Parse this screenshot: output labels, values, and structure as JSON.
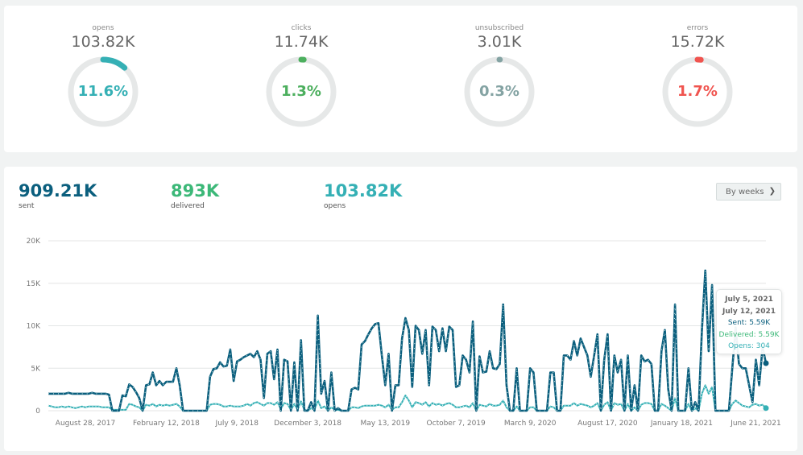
{
  "gauges": [
    {
      "label": "opens",
      "value": "103.82K",
      "percent_label": "11.6%",
      "percent": 11.6,
      "color": "#35b0b5"
    },
    {
      "label": "clicks",
      "value": "11.74K",
      "percent_label": "1.3%",
      "percent": 1.3,
      "color": "#4caf5e"
    },
    {
      "label": "unsubscribed",
      "value": "3.01K",
      "percent_label": "0.3%",
      "percent": 0.3,
      "color": "#84a3a3"
    },
    {
      "label": "errors",
      "value": "15.72K",
      "percent_label": "1.7%",
      "percent": 1.7,
      "color": "#f0544f"
    }
  ],
  "stats": [
    {
      "value": "909.21K",
      "label": "sent",
      "color": "#0b5f7e"
    },
    {
      "value": "893K",
      "label": "delivered",
      "color": "#3cb878"
    },
    {
      "value": "103.82K",
      "label": "opens",
      "color": "#35b0b5"
    }
  ],
  "period_select": {
    "value": "By weeks"
  },
  "tooltip": {
    "date_start": "July 5, 2021",
    "date_end": "July 12, 2021",
    "sent": "Sent: 5.59K",
    "delivered": "Delivered: 5.59K",
    "opens": "Opens: 304"
  },
  "chart_data": {
    "type": "line",
    "interval": "week",
    "ylim": [
      0,
      20000
    ],
    "y_ticks": [
      "0",
      "5K",
      "10K",
      "15K",
      "20K"
    ],
    "y_tick_values": [
      0,
      5000,
      10000,
      15000,
      20000
    ],
    "x_ticks": [
      "August 28, 2017",
      "February 12, 2018",
      "July 9, 2018",
      "December 3, 2018",
      "May 13, 2019",
      "October 7, 2019",
      "March 9, 2020",
      "August 17, 2020",
      "January 18, 2021",
      "June 21, 2021"
    ],
    "x_end": "July 12, 2021",
    "grid": true,
    "colors": {
      "sent": "#0b5f7e",
      "delivered": "#3cb878",
      "opens": "#35b0b5"
    },
    "series": [
      {
        "name": "Sent",
        "unit": "K",
        "values": [
          2,
          2,
          2,
          2,
          2,
          2,
          2.1,
          2,
          2,
          2,
          2,
          2,
          2,
          2.1,
          2,
          2,
          2,
          2,
          1.9,
          0,
          0,
          0,
          1.8,
          1.7,
          3.1,
          2.8,
          2.2,
          1.5,
          0,
          3.0,
          3.1,
          4.5,
          3.0,
          3.5,
          3.0,
          3.4,
          3.4,
          3.4,
          5.0,
          3.0,
          0,
          0,
          0,
          0,
          0,
          0,
          0,
          0,
          4.0,
          4.9,
          5.0,
          5.7,
          5.2,
          5.3,
          7.2,
          3.5,
          5.8,
          6.0,
          6.3,
          6.5,
          6.7,
          6.3,
          7.0,
          6.0,
          1.5,
          6.7,
          7.0,
          3.7,
          7.2,
          0,
          6.0,
          5.8,
          0,
          5.7,
          0,
          8.3,
          0,
          0,
          1.0,
          0,
          11.2,
          2.0,
          3.5,
          0,
          4.5,
          0,
          0.3,
          0,
          0,
          0,
          2.5,
          2.7,
          2.5,
          7.8,
          8.2,
          9.0,
          9.7,
          10.2,
          10.3,
          6.5,
          3.0,
          6.7,
          0,
          3.0,
          3.0,
          8.5,
          10.9,
          9.5,
          2.8,
          10.0,
          9.5,
          6.7,
          9.5,
          3.0,
          9.9,
          9.5,
          7.0,
          9.7,
          7.0,
          9.9,
          9.5,
          2.8,
          3.0,
          6.5,
          6.0,
          4.5,
          10.5,
          0,
          6.4,
          4.5,
          4.6,
          7.0,
          5.0,
          4.9,
          5.5,
          12.5,
          3.0,
          0,
          0,
          5.0,
          0,
          0,
          0,
          5.0,
          4.5,
          0,
          0,
          0,
          0,
          4.5,
          4.5,
          0,
          0,
          6.5,
          6.5,
          6.0,
          8.2,
          6.5,
          8.5,
          7.5,
          6.5,
          4.0,
          6.5,
          9.0,
          0,
          6.0,
          9.0,
          0,
          6.5,
          4.5,
          6.0,
          0,
          6.5,
          0,
          3.0,
          0,
          6.5,
          5.8,
          6.0,
          5.5,
          0,
          0,
          7.0,
          9.5,
          2.5,
          0,
          12.5,
          0,
          0,
          0,
          5.0,
          0,
          1.0,
          0,
          9.5,
          16.5,
          7.0,
          14.8,
          0,
          0,
          0,
          0,
          0,
          5.0,
          9.8,
          5.5,
          5.0,
          5.0,
          3.0,
          1.0,
          6.0,
          3.0,
          7.5,
          5.59
        ]
      },
      {
        "name": "Opens",
        "unit": "K",
        "values": [
          0.6,
          0.5,
          0.4,
          0.4,
          0.5,
          0.4,
          0.5,
          0.4,
          0.3,
          0.4,
          0.5,
          0.4,
          0.5,
          0.5,
          0.5,
          0.5,
          0.4,
          0.4,
          0.4,
          0.1,
          0.1,
          0.1,
          0.1,
          0.1,
          0.8,
          0.7,
          0.5,
          0.4,
          0,
          0.7,
          0.6,
          0.8,
          0.5,
          0.7,
          0.6,
          0.7,
          0.6,
          0.7,
          0.8,
          0.5,
          0,
          0,
          0,
          0,
          0,
          0,
          0,
          0,
          0.7,
          0.8,
          0.8,
          0.7,
          0.5,
          0.5,
          0.6,
          0.5,
          0.5,
          0.5,
          0.6,
          0.8,
          0.6,
          0.9,
          1.0,
          0.8,
          0.6,
          0.9,
          0.9,
          0.7,
          1.0,
          0.2,
          0.9,
          0.8,
          0.1,
          0.8,
          0.1,
          1.1,
          0.1,
          0,
          0.3,
          0.1,
          1.2,
          0.3,
          0.5,
          0,
          0.4,
          0.1,
          0.1,
          0,
          0,
          0,
          0.4,
          0.4,
          0.3,
          0.5,
          0.6,
          0.6,
          0.6,
          0.6,
          0.7,
          0.6,
          0.4,
          0.7,
          0.1,
          0.4,
          0.4,
          1.0,
          1.8,
          1.2,
          0.4,
          1.0,
          0.9,
          0.7,
          1.0,
          0.5,
          0.9,
          0.7,
          0.8,
          0.6,
          0.8,
          0.9,
          0.7,
          0.4,
          0.4,
          0.5,
          0.6,
          0.4,
          0.9,
          0,
          0.7,
          0.6,
          0.5,
          0.8,
          0.6,
          0.6,
          0.7,
          1.2,
          0.4,
          0,
          0,
          0.5,
          0,
          0,
          0,
          0.4,
          0.4,
          0,
          0,
          0,
          0,
          0.5,
          0.4,
          0,
          0,
          0.6,
          0.6,
          0.6,
          0.9,
          0.6,
          0.8,
          0.7,
          0.6,
          0.4,
          0.6,
          0.9,
          0,
          0.7,
          1.0,
          0,
          0.9,
          0.7,
          0.8,
          0,
          0.8,
          0,
          0.4,
          0,
          0.7,
          0.9,
          0.9,
          0.8,
          0,
          0,
          0.8,
          0.6,
          0.3,
          0,
          1.5,
          0,
          0,
          0,
          0.8,
          0,
          0.3,
          0,
          2.0,
          3.0,
          2.0,
          2.8,
          0,
          0,
          0,
          0,
          0,
          0.8,
          1.2,
          0.9,
          0.6,
          0.5,
          0.4,
          0.7,
          0.8,
          0.6,
          0.7,
          0.304
        ]
      }
    ]
  }
}
